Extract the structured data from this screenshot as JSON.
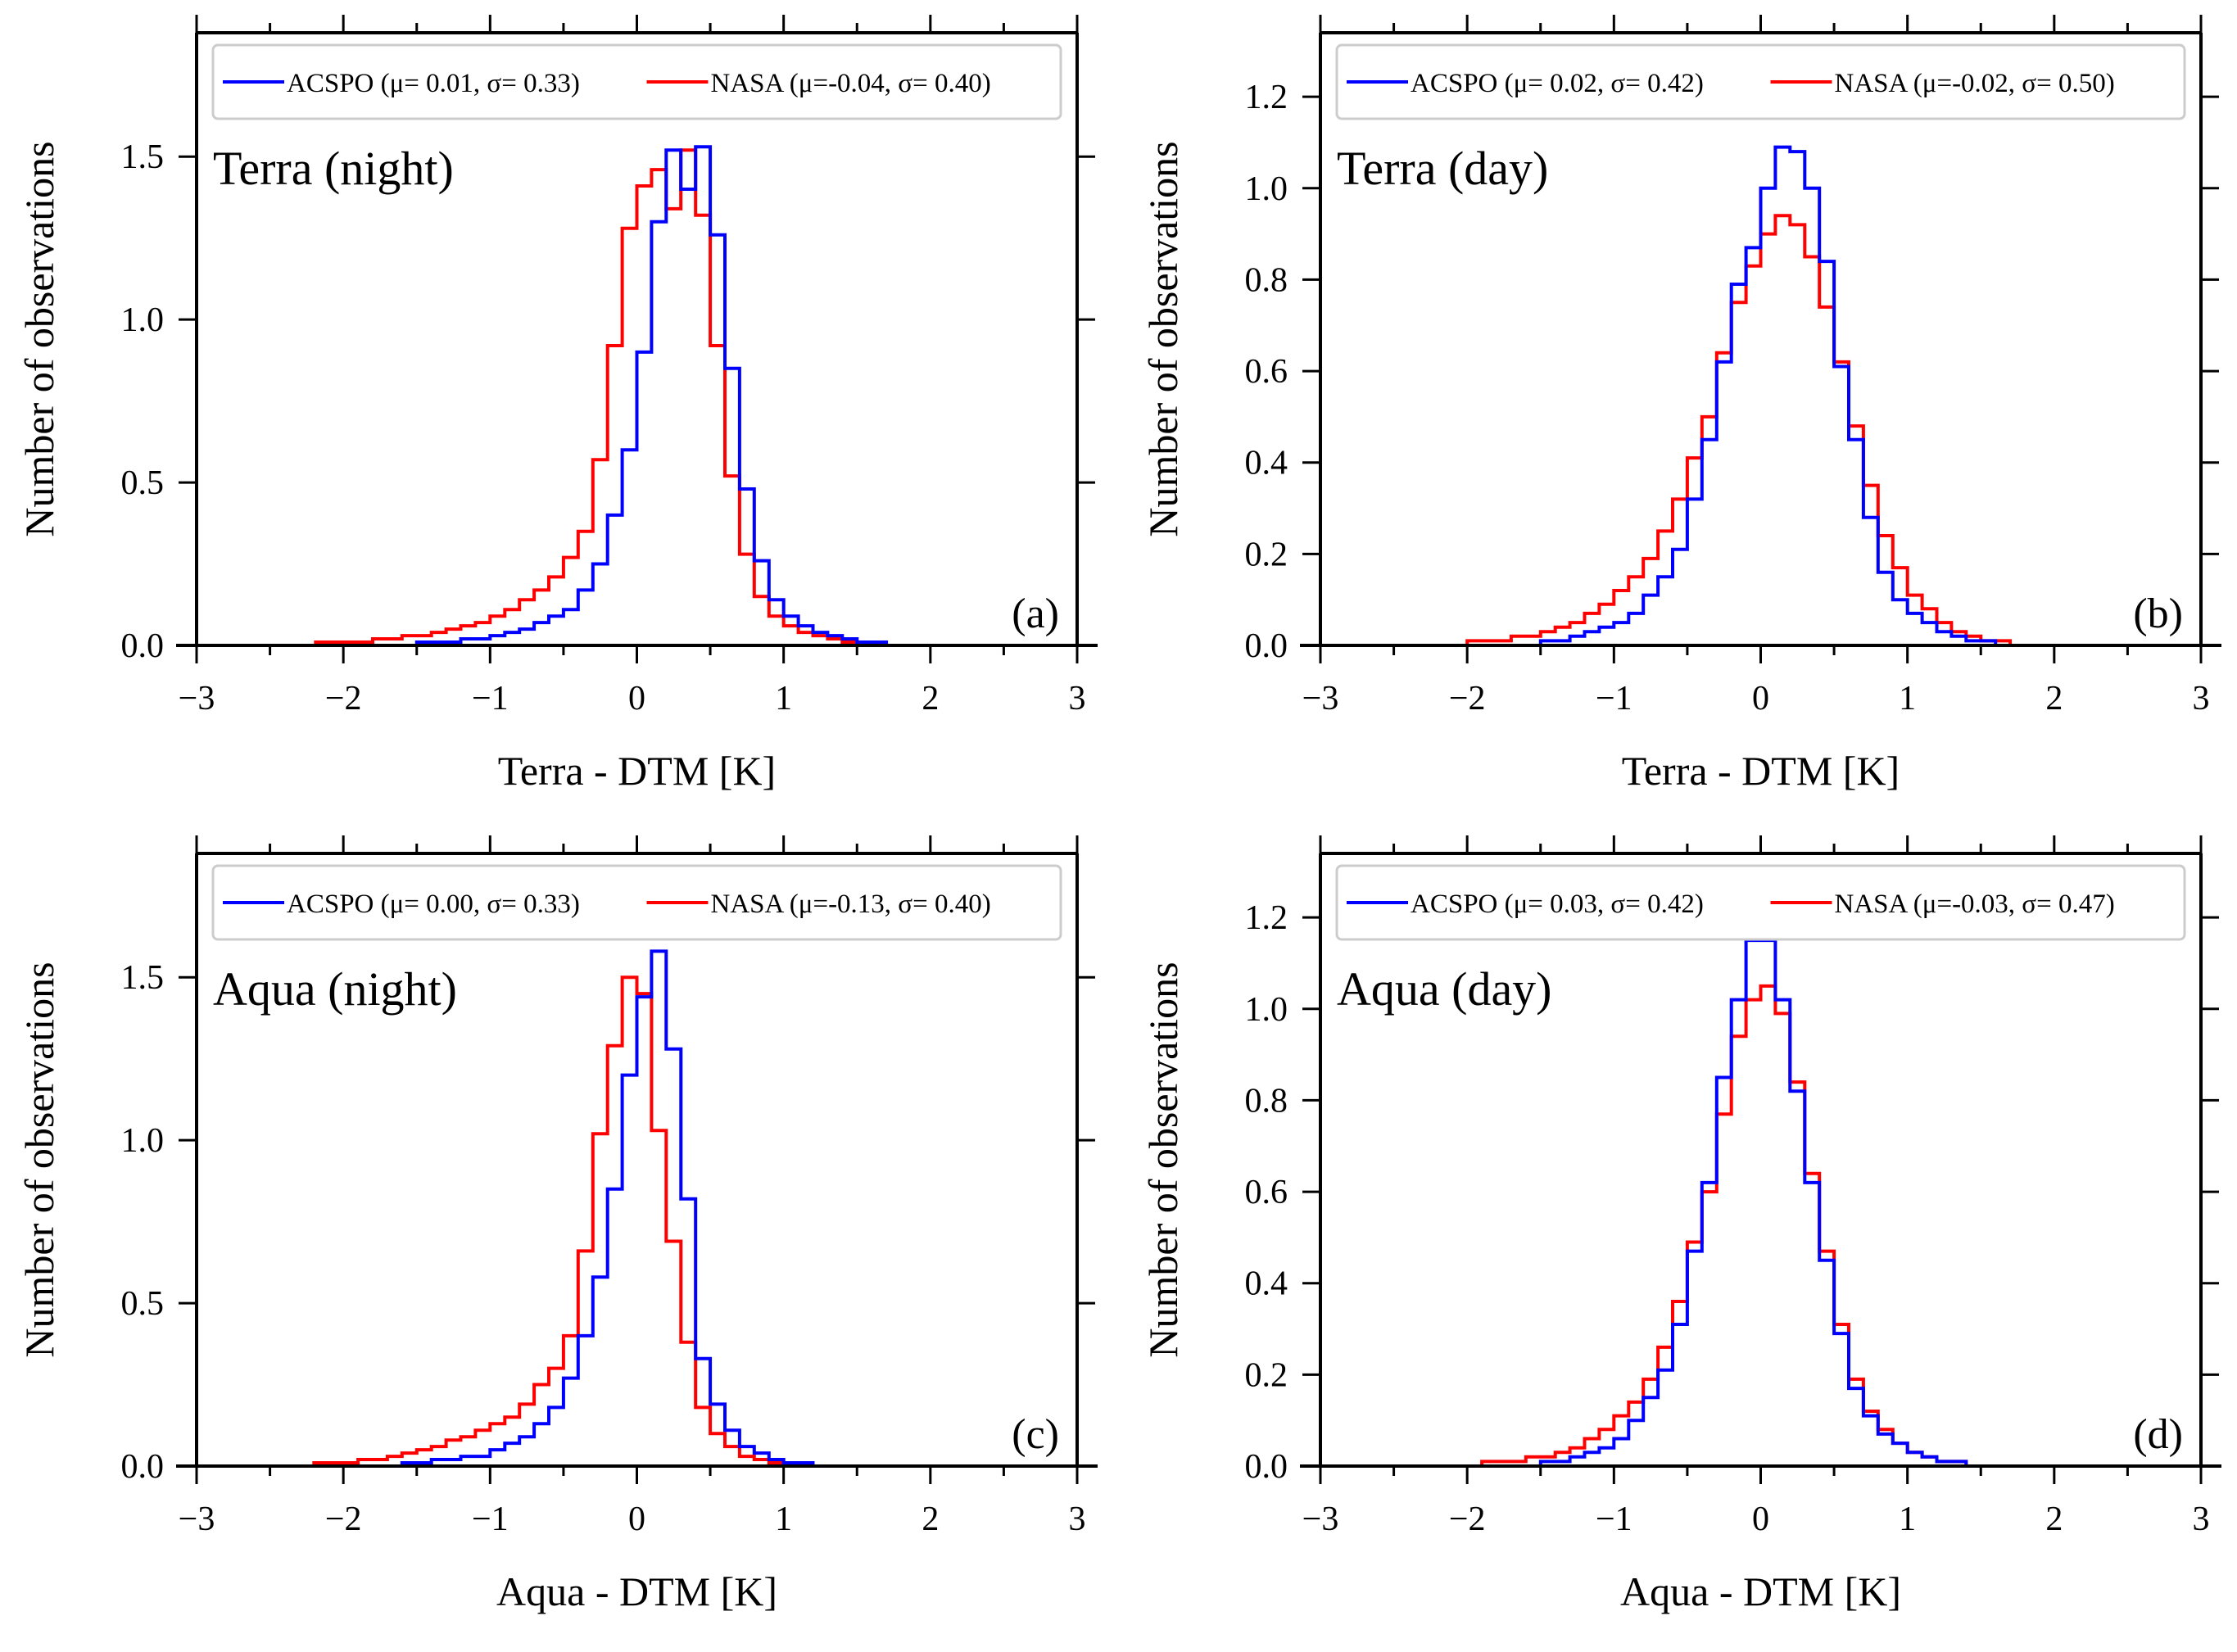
{
  "colors": {
    "acspo": "#0000ff",
    "nasa": "#ff0000",
    "axis": "#000000",
    "legend_border": "#cccccc"
  },
  "chart_data": [
    {
      "id": "a",
      "type": "histogram-step",
      "panel_label": "(a)",
      "title": "Terra (night)",
      "xlabel": "Terra - DTM [K]",
      "ylabel": "Number of observations",
      "xlim": [
        -3,
        3
      ],
      "ylim": [
        0,
        1.88
      ],
      "yticks": [
        "0.0",
        "0.5",
        "1.0",
        "1.5"
      ],
      "ytick_values": [
        0,
        0.5,
        1.0,
        1.5
      ],
      "xticks": [
        "−3",
        "−2",
        "−1",
        "0",
        "1",
        "2",
        "3"
      ],
      "xtick_values": [
        -3,
        -2,
        -1,
        0,
        1,
        2,
        3
      ],
      "legend_position": "top",
      "bin_width": 0.1,
      "series": [
        {
          "name": "ACSPO (μ= 0.01, σ= 0.33)",
          "color": "#0000ff",
          "x_start": -2.2,
          "values": [
            0.0,
            0.0,
            0.0,
            0.0,
            0.0,
            0.0,
            0.0,
            0.01,
            0.01,
            0.01,
            0.02,
            0.02,
            0.03,
            0.04,
            0.05,
            0.07,
            0.09,
            0.11,
            0.17,
            0.25,
            0.4,
            0.6,
            0.9,
            1.3,
            1.52,
            1.4,
            1.53,
            1.26,
            0.85,
            0.48,
            0.26,
            0.14,
            0.09,
            0.06,
            0.04,
            0.03,
            0.02,
            0.01,
            0.01,
            0.0
          ]
        },
        {
          "name": "NASA (μ=-0.04, σ= 0.40)",
          "color": "#ff0000",
          "x_start": -2.2,
          "values": [
            0.01,
            0.01,
            0.01,
            0.01,
            0.02,
            0.02,
            0.03,
            0.03,
            0.04,
            0.05,
            0.06,
            0.07,
            0.09,
            0.11,
            0.14,
            0.17,
            0.21,
            0.27,
            0.35,
            0.57,
            0.92,
            1.28,
            1.41,
            1.46,
            1.34,
            1.52,
            1.32,
            0.92,
            0.52,
            0.28,
            0.15,
            0.09,
            0.06,
            0.04,
            0.03,
            0.02,
            0.01,
            0.01,
            0.0,
            0.0
          ]
        }
      ]
    },
    {
      "id": "b",
      "type": "histogram-step",
      "panel_label": "(b)",
      "title": "Terra (day)",
      "xlabel": "Terra - DTM [K]",
      "ylabel": "Number of observations",
      "xlim": [
        -3,
        3
      ],
      "ylim": [
        0,
        1.34
      ],
      "yticks": [
        "0.0",
        "0.2",
        "0.4",
        "0.6",
        "0.8",
        "1.0",
        "1.2"
      ],
      "ytick_values": [
        0,
        0.2,
        0.4,
        0.6,
        0.8,
        1.0,
        1.2
      ],
      "xticks": [
        "−3",
        "−2",
        "−1",
        "0",
        "1",
        "2",
        "3"
      ],
      "xtick_values": [
        -3,
        -2,
        -1,
        0,
        1,
        2,
        3
      ],
      "legend_position": "top",
      "bin_width": 0.1,
      "series": [
        {
          "name": "ACSPO (μ= 0.02, σ= 0.42)",
          "color": "#0000ff",
          "x_start": -2.3,
          "values": [
            0.0,
            0.0,
            0.0,
            0.0,
            0.0,
            0.0,
            0.0,
            0.0,
            0.01,
            0.01,
            0.02,
            0.03,
            0.04,
            0.05,
            0.07,
            0.11,
            0.15,
            0.21,
            0.32,
            0.45,
            0.62,
            0.79,
            0.87,
            1.0,
            1.09,
            1.08,
            1.0,
            0.84,
            0.61,
            0.45,
            0.28,
            0.16,
            0.1,
            0.07,
            0.05,
            0.03,
            0.02,
            0.01,
            0.01,
            0.0,
            0.0,
            0.0,
            0.0,
            0.0,
            0.0
          ]
        },
        {
          "name": "NASA (μ=-0.02, σ= 0.50)",
          "color": "#ff0000",
          "x_start": -2.3,
          "values": [
            0.0,
            0.0,
            0.0,
            0.01,
            0.01,
            0.01,
            0.02,
            0.02,
            0.03,
            0.04,
            0.05,
            0.07,
            0.09,
            0.12,
            0.15,
            0.19,
            0.25,
            0.32,
            0.41,
            0.5,
            0.64,
            0.75,
            0.83,
            0.9,
            0.94,
            0.92,
            0.85,
            0.74,
            0.62,
            0.48,
            0.35,
            0.24,
            0.17,
            0.11,
            0.08,
            0.05,
            0.03,
            0.02,
            0.01,
            0.01,
            0.0,
            0.0,
            0.0,
            0.0,
            0.0
          ]
        }
      ]
    },
    {
      "id": "c",
      "type": "histogram-step",
      "panel_label": "(c)",
      "title": "Aqua (night)",
      "xlabel": "Aqua - DTM [K]",
      "ylabel": "Number of observations",
      "xlim": [
        -3,
        3
      ],
      "ylim": [
        0,
        1.88
      ],
      "yticks": [
        "0.0",
        "0.5",
        "1.0",
        "1.5"
      ],
      "ytick_values": [
        0,
        0.5,
        1.0,
        1.5
      ],
      "xticks": [
        "−3",
        "−2",
        "−1",
        "0",
        "1",
        "2",
        "3"
      ],
      "xtick_values": [
        -3,
        -2,
        -1,
        0,
        1,
        2,
        3
      ],
      "legend_position": "top",
      "bin_width": 0.1,
      "series": [
        {
          "name": "ACSPO (μ= 0.00, σ= 0.33)",
          "color": "#0000ff",
          "x_start": -2.3,
          "values": [
            0.0,
            0.0,
            0.0,
            0.0,
            0.0,
            0.0,
            0.0,
            0.01,
            0.01,
            0.02,
            0.02,
            0.03,
            0.03,
            0.05,
            0.07,
            0.09,
            0.13,
            0.18,
            0.27,
            0.4,
            0.58,
            0.85,
            1.2,
            1.44,
            1.58,
            1.28,
            0.82,
            0.33,
            0.19,
            0.11,
            0.06,
            0.04,
            0.02,
            0.01,
            0.01,
            0.0,
            0.0,
            0.0
          ]
        },
        {
          "name": "NASA (μ=-0.13, σ= 0.40)",
          "color": "#ff0000",
          "x_start": -2.3,
          "values": [
            0.0,
            0.01,
            0.01,
            0.01,
            0.02,
            0.02,
            0.03,
            0.04,
            0.05,
            0.06,
            0.08,
            0.09,
            0.11,
            0.13,
            0.15,
            0.19,
            0.25,
            0.3,
            0.4,
            0.66,
            1.02,
            1.29,
            1.5,
            1.45,
            1.03,
            0.69,
            0.38,
            0.18,
            0.1,
            0.06,
            0.03,
            0.02,
            0.01,
            0.0,
            0.0,
            0.0,
            0.0,
            0.0
          ]
        }
      ]
    },
    {
      "id": "d",
      "type": "histogram-step",
      "panel_label": "(d)",
      "title": "Aqua (day)",
      "xlabel": "Aqua - DTM [K]",
      "ylabel": "Number of observations",
      "xlim": [
        -3,
        3
      ],
      "ylim": [
        0,
        1.34
      ],
      "yticks": [
        "0.0",
        "0.2",
        "0.4",
        "0.6",
        "0.8",
        "1.0",
        "1.2"
      ],
      "ytick_values": [
        0,
        0.2,
        0.4,
        0.6,
        0.8,
        1.0,
        1.2
      ],
      "xticks": [
        "−3",
        "−2",
        "−1",
        "0",
        "1",
        "2",
        "3"
      ],
      "xtick_values": [
        -3,
        -2,
        -1,
        0,
        1,
        2,
        3
      ],
      "legend_position": "top",
      "bin_width": 0.1,
      "series": [
        {
          "name": "ACSPO (μ= 0.03, σ= 0.42)",
          "color": "#0000ff",
          "x_start": -2.1,
          "values": [
            0.0,
            0.0,
            0.0,
            0.0,
            0.0,
            0.0,
            0.01,
            0.01,
            0.02,
            0.03,
            0.04,
            0.06,
            0.1,
            0.15,
            0.21,
            0.31,
            0.47,
            0.62,
            0.85,
            1.02,
            1.15,
            1.15,
            1.02,
            0.82,
            0.62,
            0.45,
            0.29,
            0.17,
            0.11,
            0.07,
            0.05,
            0.03,
            0.02,
            0.01,
            0.01,
            0.0,
            0.0,
            0.0,
            0.0,
            0.0
          ]
        },
        {
          "name": "NASA (μ=-0.03, σ= 0.47)",
          "color": "#ff0000",
          "x_start": -2.1,
          "values": [
            0.0,
            0.0,
            0.01,
            0.01,
            0.01,
            0.02,
            0.02,
            0.03,
            0.04,
            0.06,
            0.08,
            0.11,
            0.14,
            0.19,
            0.26,
            0.36,
            0.49,
            0.6,
            0.77,
            0.94,
            1.02,
            1.05,
            0.99,
            0.84,
            0.64,
            0.47,
            0.31,
            0.19,
            0.12,
            0.08,
            0.05,
            0.03,
            0.02,
            0.01,
            0.01,
            0.0,
            0.0,
            0.0,
            0.0,
            0.0
          ]
        }
      ]
    }
  ]
}
